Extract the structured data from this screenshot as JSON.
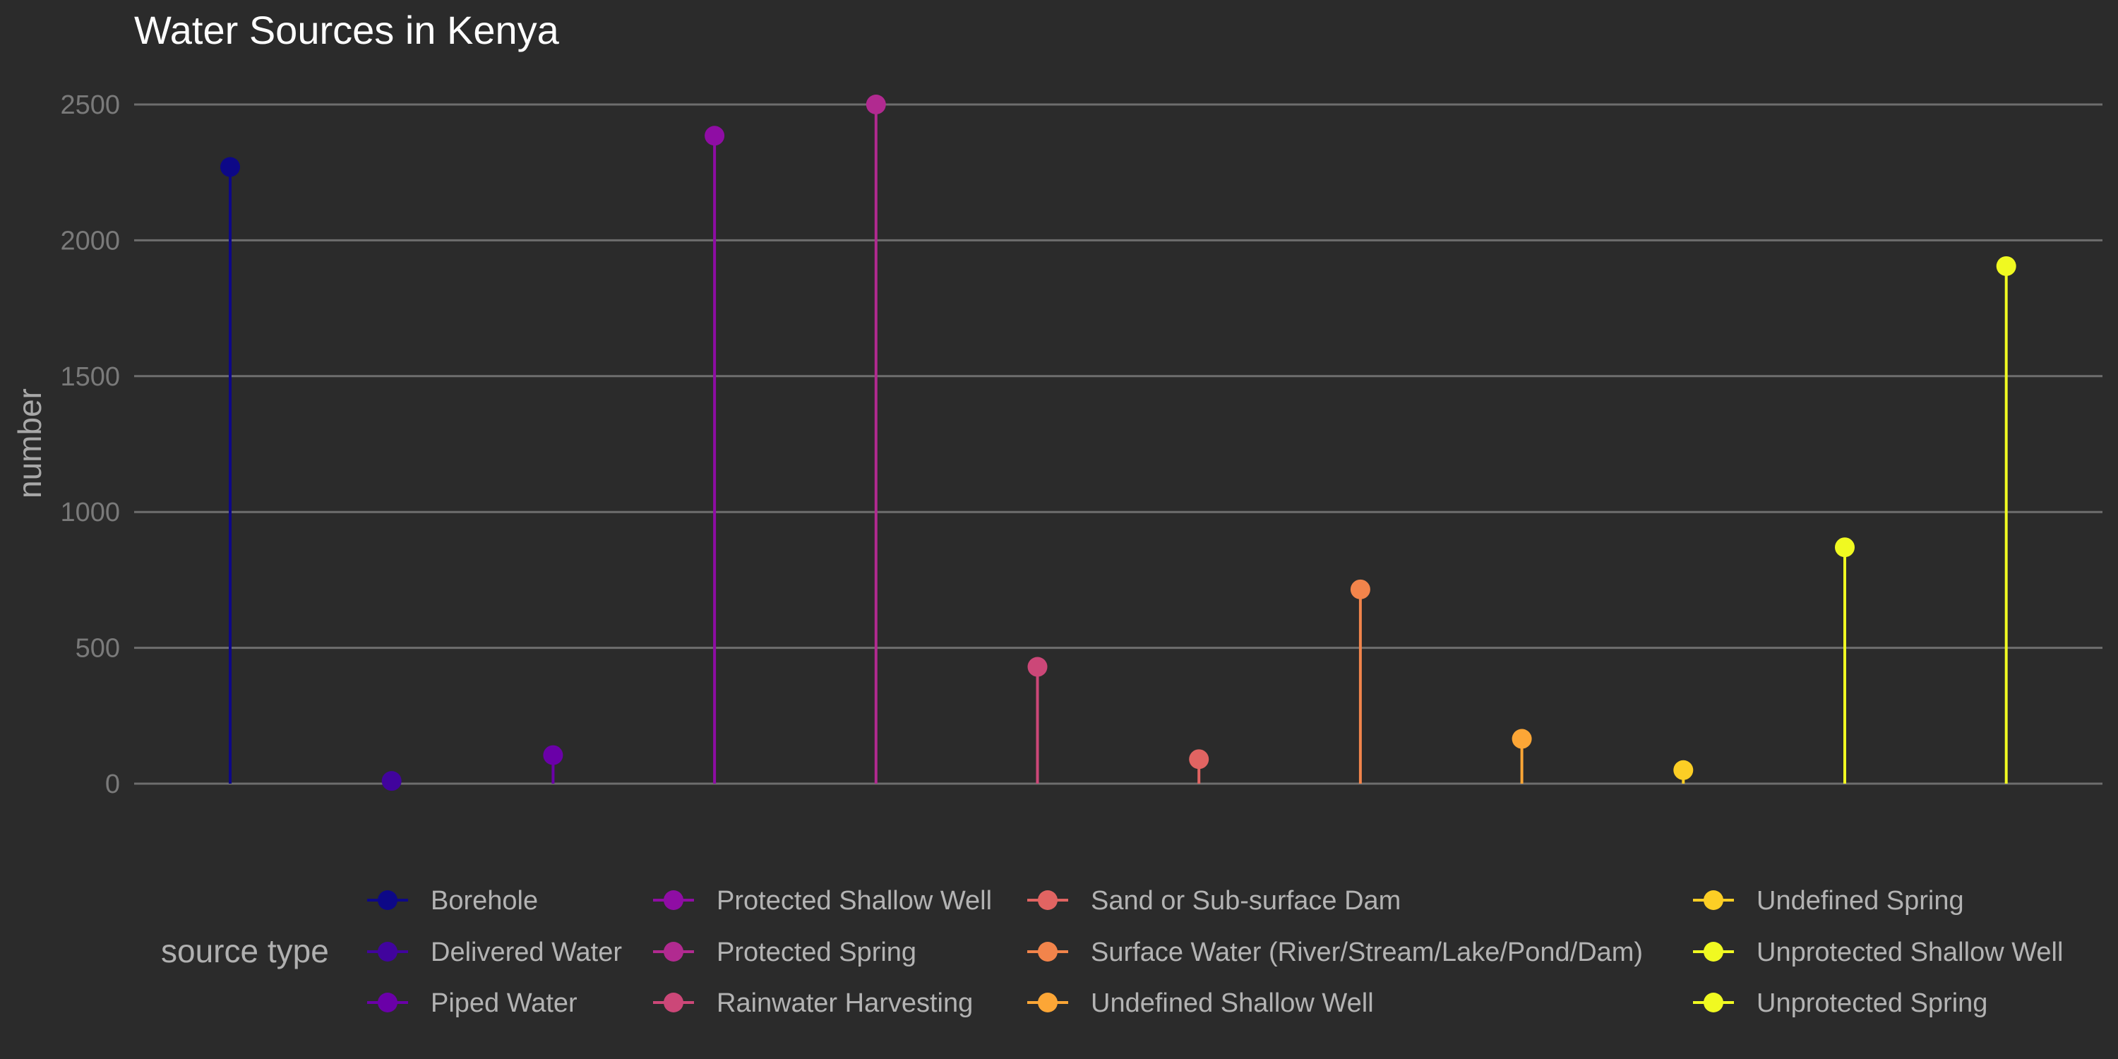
{
  "chart_data": {
    "type": "lollipop",
    "title": "Water Sources in Kenya",
    "xlabel": "",
    "ylabel": "number",
    "ylim": [
      0,
      2500
    ],
    "yticks": [
      0,
      500,
      1000,
      1500,
      2000,
      2500
    ],
    "grid": true,
    "legend_title": "source type",
    "legend_position": "bottom",
    "categories": [
      "Borehole",
      "Delivered Water",
      "Piped Water",
      "Protected Shallow Well",
      "Protected Spring",
      "Rainwater Harvesting",
      "Sand or Sub-surface Dam",
      "Surface Water (River/Stream/Lake/Pond/Dam)",
      "Undefined Shallow Well",
      "Undefined Spring",
      "Unprotected Shallow Well",
      "Unprotected Spring"
    ],
    "values": [
      2270,
      10,
      105,
      2385,
      2500,
      430,
      90,
      715,
      165,
      50,
      870,
      1905
    ],
    "colors": [
      "#0d0887",
      "#41049d",
      "#6a00a8",
      "#8f0da4",
      "#b12a90",
      "#cc4778",
      "#e16462",
      "#f2844b",
      "#fca636",
      "#fcce25",
      "#f0f921",
      "#f0f921"
    ]
  }
}
